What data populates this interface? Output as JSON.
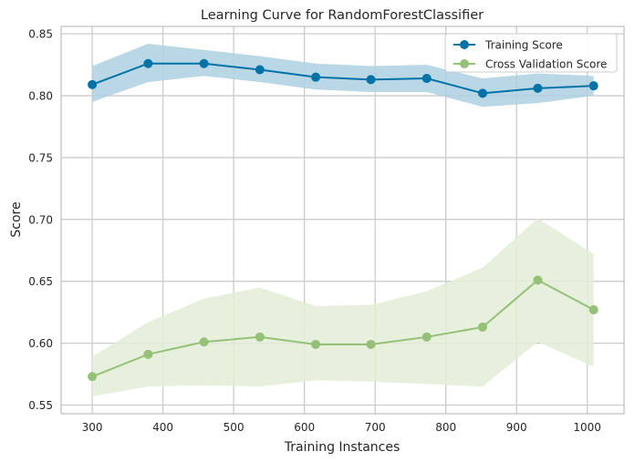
{
  "chart_data": {
    "type": "line",
    "title": "Learning Curve for RandomForestClassifier",
    "xlabel": "Training Instances",
    "ylabel": "Score",
    "xlim": [
      256,
      1052
    ],
    "ylim": [
      0.543,
      0.856
    ],
    "xticks": [
      300,
      400,
      500,
      600,
      700,
      800,
      900,
      1000
    ],
    "yticks": [
      0.55,
      0.6,
      0.65,
      0.7,
      0.75,
      0.8,
      0.85
    ],
    "xtick_labels": [
      "300",
      "400",
      "500",
      "600",
      "700",
      "800",
      "900",
      "1000"
    ],
    "ytick_labels": [
      "0.55",
      "0.60",
      "0.65",
      "0.70",
      "0.75",
      "0.80",
      "0.85"
    ],
    "grid": true,
    "legend_position": "top-right",
    "x": [
      300,
      379,
      458,
      537,
      616,
      694,
      773,
      852,
      930,
      1009
    ],
    "series": [
      {
        "name": "Training Score",
        "color": "#0072a7",
        "band_color": "#aed0e2",
        "values": [
          0.809,
          0.826,
          0.826,
          0.821,
          0.815,
          0.813,
          0.814,
          0.802,
          0.806,
          0.808
        ],
        "upper": [
          0.824,
          0.842,
          0.837,
          0.832,
          0.826,
          0.824,
          0.825,
          0.814,
          0.818,
          0.816
        ],
        "lower": [
          0.795,
          0.811,
          0.816,
          0.811,
          0.805,
          0.803,
          0.803,
          0.791,
          0.794,
          0.8
        ]
      },
      {
        "name": "Cross Validation Score",
        "color": "#94c077",
        "band_color": "#e3edd6",
        "values": [
          0.573,
          0.591,
          0.601,
          0.605,
          0.599,
          0.599,
          0.605,
          0.613,
          0.651,
          0.627
        ],
        "upper": [
          0.589,
          0.617,
          0.636,
          0.645,
          0.63,
          0.631,
          0.642,
          0.661,
          0.701,
          0.672
        ],
        "lower": [
          0.557,
          0.565,
          0.566,
          0.565,
          0.57,
          0.569,
          0.567,
          0.565,
          0.601,
          0.581
        ]
      }
    ]
  }
}
